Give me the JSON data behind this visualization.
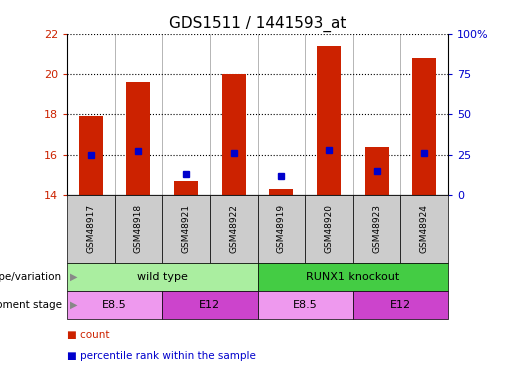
{
  "title": "GDS1511 / 1441593_at",
  "samples": [
    "GSM48917",
    "GSM48918",
    "GSM48921",
    "GSM48922",
    "GSM48919",
    "GSM48920",
    "GSM48923",
    "GSM48924"
  ],
  "count_values": [
    17.9,
    19.6,
    14.7,
    20.0,
    14.3,
    21.4,
    16.4,
    20.8
  ],
  "percentile_values": [
    25,
    27,
    13,
    26,
    12,
    28,
    15,
    26
  ],
  "ylim_left": [
    14,
    22
  ],
  "ylim_right": [
    0,
    100
  ],
  "yticks_left": [
    14,
    16,
    18,
    20,
    22
  ],
  "yticks_right": [
    0,
    25,
    50,
    75,
    100
  ],
  "ytick_labels_right": [
    "0",
    "25",
    "50",
    "75",
    "100%"
  ],
  "bar_color": "#cc2200",
  "percentile_color": "#0000cc",
  "bar_width": 0.5,
  "genotype_groups": [
    {
      "label": "wild type",
      "start": 0,
      "end": 4,
      "color": "#aaeea0"
    },
    {
      "label": "RUNX1 knockout",
      "start": 4,
      "end": 8,
      "color": "#44cc44"
    }
  ],
  "development_groups": [
    {
      "label": "E8.5",
      "start": 0,
      "end": 2,
      "color": "#ee99ee"
    },
    {
      "label": "E12",
      "start": 2,
      "end": 4,
      "color": "#cc44cc"
    },
    {
      "label": "E8.5",
      "start": 4,
      "end": 6,
      "color": "#ee99ee"
    },
    {
      "label": "E12",
      "start": 6,
      "end": 8,
      "color": "#cc44cc"
    }
  ],
  "legend_items": [
    {
      "label": "count",
      "color": "#cc2200"
    },
    {
      "label": "percentile rank within the sample",
      "color": "#0000cc"
    }
  ],
  "grid_color": "black",
  "background_color": "#ffffff",
  "plot_bg_color": "#ffffff",
  "sample_bg_color": "#cccccc",
  "tick_label_color_left": "#cc2200",
  "tick_label_color_right": "#0000cc",
  "title_fontsize": 11,
  "base_value": 14
}
